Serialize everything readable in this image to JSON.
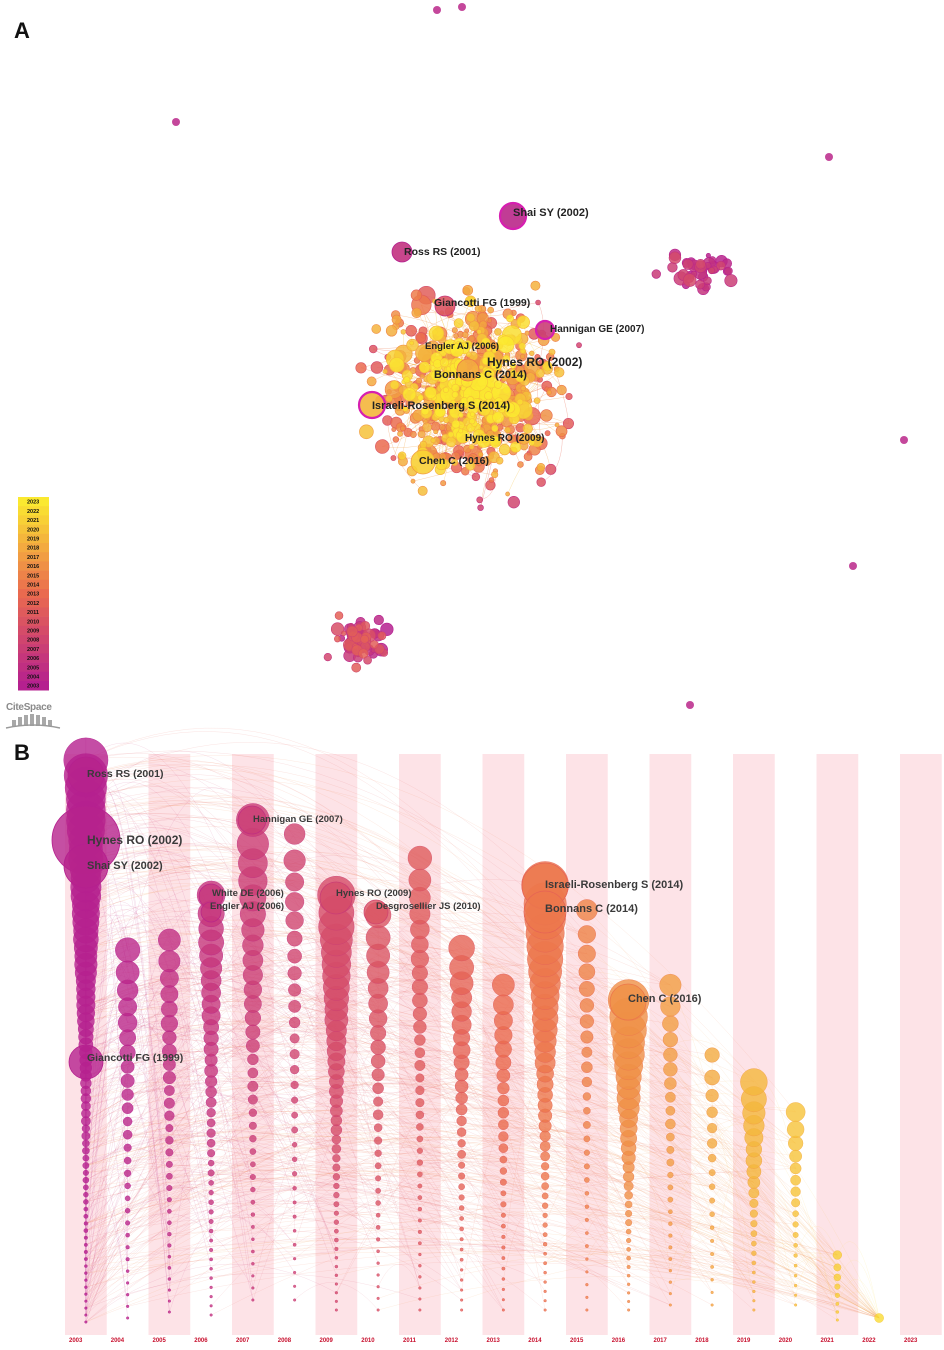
{
  "panel_a": {
    "letter": "A",
    "labels": [
      {
        "text": "Shai SY (2002)"
      },
      {
        "text": "Ross RS (2001)"
      },
      {
        "text": "Giancotti FG (1999)"
      },
      {
        "text": "Hannigan GE (2007)"
      },
      {
        "text": "Engler AJ (2006)"
      },
      {
        "text": "Hynes RO (2002)"
      },
      {
        "text": "Bonnans C (2014)"
      },
      {
        "text": "Israeli-Rosenberg S (2014)"
      },
      {
        "text": "Hynes RO (2009)"
      },
      {
        "text": "Chen C (2016)"
      }
    ],
    "legend_years": [
      "2023",
      "2022",
      "2021",
      "2020",
      "2019",
      "2018",
      "2017",
      "2016",
      "2015",
      "2014",
      "2013",
      "2012",
      "2011",
      "2010",
      "2009",
      "2008",
      "2007",
      "2006",
      "2005",
      "2004",
      "2003"
    ],
    "logo_text": "CiteSpace"
  },
  "panel_b": {
    "letter": "B",
    "years": [
      "2003",
      "2004",
      "2005",
      "2006",
      "2007",
      "2008",
      "2009",
      "2010",
      "2011",
      "2012",
      "2013",
      "2014",
      "2015",
      "2016",
      "2017",
      "2018",
      "2019",
      "2020",
      "2021",
      "2022",
      "2023"
    ],
    "labels": [
      {
        "text": "Ross RS (2001)"
      },
      {
        "text": "Hannigan GE (2007)"
      },
      {
        "text": "Hynes RO (2002)"
      },
      {
        "text": "Shai SY (2002)"
      },
      {
        "text": "White DE (2006)"
      },
      {
        "text": "Engler AJ (2006)"
      },
      {
        "text": "Hynes RO (2009)"
      },
      {
        "text": "Desgrosellier JS (2010)"
      },
      {
        "text": "Israeli-Rosenberg S (2014)"
      },
      {
        "text": "Bonnans C (2014)"
      },
      {
        "text": "Chen C (2016)"
      },
      {
        "text": "Giancotti FG (1999)"
      }
    ]
  },
  "colors": {
    "oldest": "#b5208f",
    "mid": "#ea6a4f",
    "newest": "#fbe930",
    "band": "#fde3e7",
    "year_tick": "#c8102e"
  }
}
